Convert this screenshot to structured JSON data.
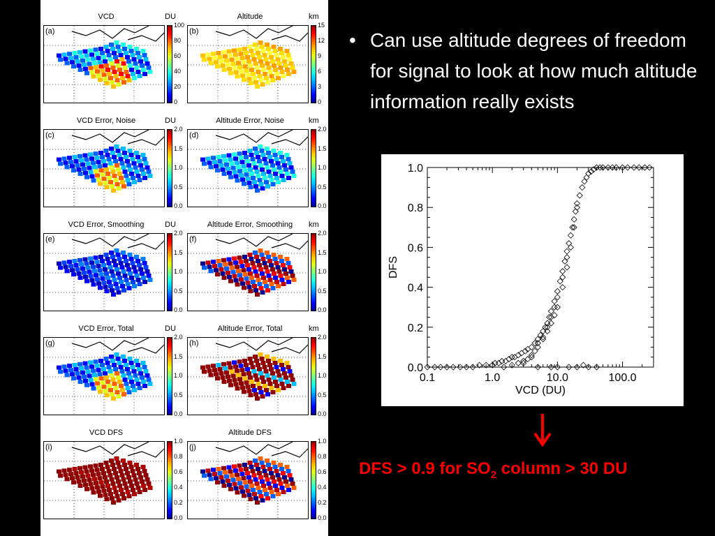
{
  "bullet": {
    "marker": "•",
    "text": "Can use altitude degrees of freedom for signal to look at how much altitude information really exists"
  },
  "maps": [
    {
      "label": "(a)",
      "title": "VCD",
      "unit": "DU",
      "ticks": [
        "100",
        "80",
        "60",
        "40",
        "20",
        "0"
      ],
      "scheme": "vcd"
    },
    {
      "label": "(b)",
      "title": "Altitude",
      "unit": "km",
      "ticks": [
        "15",
        "12",
        "9",
        "6",
        "3",
        "0"
      ],
      "scheme": "alt"
    },
    {
      "label": "(c)",
      "title": "VCD Error, Noise",
      "unit": "DU",
      "ticks": [
        "2.0",
        "1.5",
        "1.0",
        "0.5",
        "0.0"
      ],
      "scheme": "vcdnoise"
    },
    {
      "label": "(d)",
      "title": "Altitude Error, Noise",
      "unit": "km",
      "ticks": [
        "2.0",
        "1.5",
        "1.0",
        "0.5",
        "0.0"
      ],
      "scheme": "altnoise"
    },
    {
      "label": "(e)",
      "title": "VCD Error, Smoothing",
      "unit": "DU",
      "ticks": [
        "2.0",
        "1.5",
        "1.0",
        "0.5",
        "0.0"
      ],
      "scheme": "blue"
    },
    {
      "label": "(f)",
      "title": "Altitude Error, Smoothing",
      "unit": "km",
      "ticks": [
        "2.0",
        "1.5",
        "1.0",
        "0.5",
        "0.0"
      ],
      "scheme": "redblue"
    },
    {
      "label": "(g)",
      "title": "VCD Error, Total",
      "unit": "DU",
      "ticks": [
        "2.0",
        "1.5",
        "1.0",
        "0.5",
        "0.0"
      ],
      "scheme": "vcdnoise"
    },
    {
      "label": "(h)",
      "title": "Altitude Error, Total",
      "unit": "km",
      "ticks": [
        "2.0",
        "1.5",
        "1.0",
        "0.5",
        "0.0"
      ],
      "scheme": "redmost"
    },
    {
      "label": "(i)",
      "title": "VCD DFS",
      "unit": "",
      "ticks": [
        "1.0",
        "0.8",
        "0.6",
        "0.4",
        "0.2",
        "0.0"
      ],
      "scheme": "red"
    },
    {
      "label": "(j)",
      "title": "Altitude DFS",
      "unit": "",
      "ticks": [
        "1.0",
        "0.8",
        "0.6",
        "0.4",
        "0.2",
        "0.0"
      ],
      "scheme": "redblue"
    }
  ],
  "colors": {
    "background": "#000000",
    "footer": "#ff0000",
    "arrow": "#ff0000",
    "marker": "#000000"
  },
  "chart_data": {
    "type": "scatter",
    "xlabel": "VCD (DU)",
    "ylabel": "DFS",
    "xscale": "log",
    "xlim": [
      0.1,
      300
    ],
    "ylim": [
      0.0,
      1.0
    ],
    "xticks": [
      0.1,
      1.0,
      10.0,
      100.0
    ],
    "xtick_labels": [
      "0.1",
      "1.0",
      "10.0",
      "100.0"
    ],
    "yticks": [
      0.0,
      0.2,
      0.4,
      0.6,
      0.8,
      1.0
    ],
    "ytick_labels": [
      "0.0",
      "0.2",
      "0.4",
      "0.6",
      "0.8",
      "1.0"
    ],
    "marker": "diamond",
    "series": [
      {
        "x": [
          0.1,
          0.13,
          0.16,
          0.2,
          0.25,
          0.32,
          0.4,
          0.5,
          0.63,
          0.8,
          1.0,
          1.1,
          1.25,
          1.4,
          1.6,
          1.8,
          2.0,
          2.2,
          2.5,
          2.8,
          3.2,
          3.5,
          4.0,
          4.5,
          5.0,
          5.5,
          6.0,
          6.5,
          7.0,
          7.5,
          8.0,
          9.0,
          10.0,
          11.0,
          12.0,
          13.0,
          14.0,
          15.0,
          16.0,
          17.0,
          18.0,
          19.0,
          20.0,
          22.0,
          24.0,
          26.0,
          28.0,
          30.0,
          33.0,
          36.0,
          40.0,
          45.0,
          50.0,
          60.0,
          70.0,
          80.0,
          100.0,
          120.0,
          150.0,
          180.0,
          220.0,
          260.0,
          1.5,
          2.0,
          2.5,
          3.0,
          3.5,
          4.0,
          4.5,
          5.0,
          6.0,
          7.0,
          8.0,
          9.0,
          10.0,
          12.0,
          14.0,
          3.0,
          4.0,
          5.0,
          6.0,
          7.0,
          8.0,
          9.0,
          10.0,
          12.0,
          14.0,
          16.0,
          18.0,
          20.0,
          5.0,
          8.0,
          10.0,
          15.0,
          20.0,
          25.0,
          30.0,
          40.0
        ],
        "y": [
          0.0,
          0.0,
          0.0,
          0.0,
          0.0,
          0.0,
          0.0,
          0.0,
          0.01,
          0.01,
          0.01,
          0.02,
          0.02,
          0.03,
          0.03,
          0.04,
          0.05,
          0.05,
          0.06,
          0.07,
          0.08,
          0.09,
          0.1,
          0.12,
          0.14,
          0.16,
          0.18,
          0.2,
          0.22,
          0.25,
          0.28,
          0.33,
          0.38,
          0.43,
          0.48,
          0.53,
          0.58,
          0.62,
          0.66,
          0.7,
          0.74,
          0.78,
          0.82,
          0.86,
          0.9,
          0.93,
          0.95,
          0.97,
          0.98,
          0.99,
          1.0,
          1.0,
          1.0,
          1.0,
          1.0,
          1.0,
          1.0,
          1.0,
          1.0,
          1.0,
          1.0,
          1.0,
          0.0,
          0.01,
          0.02,
          0.03,
          0.04,
          0.06,
          0.08,
          0.12,
          0.15,
          0.2,
          0.25,
          0.3,
          0.35,
          0.45,
          0.55,
          0.02,
          0.05,
          0.1,
          0.14,
          0.18,
          0.22,
          0.26,
          0.3,
          0.4,
          0.5,
          0.6,
          0.7,
          0.8,
          0.0,
          0.0,
          0.0,
          0.0,
          0.0,
          0.01,
          0.0,
          0.0
        ]
      }
    ]
  },
  "footer": {
    "prefix": "DFS > 0.9 for SO",
    "sub": "2",
    "suffix": " column > 30 DU"
  }
}
